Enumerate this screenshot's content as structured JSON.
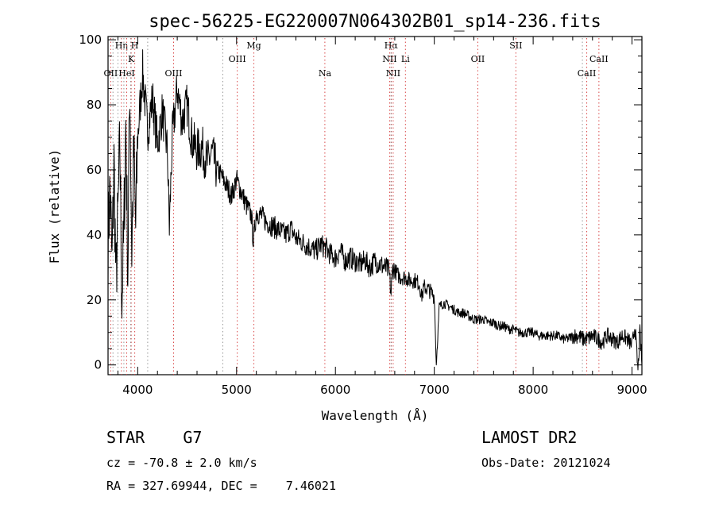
{
  "chart_data": {
    "type": "line",
    "title": "spec-56225-EG220007N064302B01_sp14-236.fits",
    "xlabel": "Wavelength (Å)",
    "ylabel": "Flux (relative)",
    "xlim": [
      3700,
      9100
    ],
    "ylim": [
      -3,
      101
    ],
    "xticks": [
      4000,
      5000,
      6000,
      7000,
      8000,
      9000
    ],
    "yticks": [
      0,
      20,
      40,
      60,
      80,
      100
    ],
    "grid": false,
    "line_color": "#000000",
    "marker_color": "#d94a4a",
    "series": [
      {
        "x": [
          3700,
          3720,
          3740,
          3760,
          3780,
          3800,
          3820,
          3840,
          3860,
          3880,
          3900,
          3920,
          3940,
          3960,
          3980,
          4000,
          4050,
          4100,
          4150,
          4200,
          4250,
          4300,
          4320,
          4350,
          4400,
          4450,
          4500,
          4550,
          4600,
          4650,
          4700,
          4750,
          4800,
          4850,
          4900,
          4950,
          5000,
          5050,
          5100,
          5150,
          5170,
          5200,
          5250,
          5300,
          5350,
          5400,
          5450,
          5500,
          5550,
          5600,
          5650,
          5700,
          5750,
          5800,
          5850,
          5900,
          5950,
          6000,
          6050,
          6100,
          6150,
          6200,
          6250,
          6300,
          6350,
          6400,
          6450,
          6500,
          6540,
          6563,
          6580,
          6600,
          6650,
          6700,
          6750,
          6800,
          6850,
          6870,
          6900,
          6950,
          7000,
          7020,
          7050,
          7100,
          7150,
          7200,
          7250,
          7300,
          7350,
          7400,
          7450,
          7500,
          7550,
          7600,
          7650,
          7700,
          7750,
          7800,
          7850,
          7900,
          7950,
          8000,
          8050,
          8100,
          8150,
          8200,
          8250,
          8300,
          8350,
          8400,
          8450,
          8500,
          8550,
          8600,
          8650,
          8700,
          8750,
          8800,
          8850,
          8900,
          8950,
          9000,
          9030,
          9060,
          9080,
          9100
        ],
        "y": [
          38,
          55,
          30,
          62,
          25,
          45,
          68,
          20,
          40,
          75,
          28,
          88,
          35,
          65,
          42,
          70,
          90,
          72,
          82,
          68,
          78,
          66,
          42,
          70,
          85,
          75,
          80,
          69,
          66,
          67,
          62,
          65,
          60,
          58,
          55,
          52,
          57,
          53,
          49,
          46,
          38,
          47,
          46,
          44,
          43,
          42,
          41,
          40,
          42,
          39,
          38,
          37,
          36,
          35,
          37,
          36,
          34,
          33,
          35,
          32,
          33,
          32,
          31,
          32,
          30,
          32,
          31,
          30,
          29,
          22,
          30,
          29,
          27,
          27,
          26,
          26,
          25,
          21,
          24,
          23,
          21,
          0,
          18,
          19,
          18,
          17,
          16,
          16,
          15,
          14,
          14,
          14,
          13,
          13,
          12,
          12,
          11,
          11,
          10,
          10,
          10,
          10,
          9,
          9,
          9,
          9,
          9,
          8,
          8,
          9,
          9,
          8,
          8,
          9,
          8,
          7,
          9,
          8,
          7,
          9,
          8,
          6,
          12,
          -2,
          10,
          0
        ]
      }
    ],
    "lines_top": [
      {
        "label": "Hη",
        "x": 3835,
        "row": 0
      },
      {
        "label": "H",
        "x": 3970,
        "row": 0
      },
      {
        "label": "Mg",
        "x": 5175,
        "row": 0
      },
      {
        "label": "Hα",
        "x": 6563,
        "row": 0
      },
      {
        "label": "SII",
        "x": 7825,
        "row": 0
      },
      {
        "label": "K",
        "x": 3934,
        "row": 1
      },
      {
        "label": "OIII",
        "x": 5007,
        "row": 1
      },
      {
        "label": "NII",
        "x": 6548,
        "row": 1
      },
      {
        "label": "Li",
        "x": 6708,
        "row": 1
      },
      {
        "label": "OII",
        "x": 7440,
        "row": 1
      },
      {
        "label": "CaII",
        "x": 8665,
        "row": 1
      }
    ],
    "lines_bottom": [
      {
        "label": "OII",
        "x": 3727,
        "row": 2
      },
      {
        "label": "HeI",
        "x": 3889,
        "row": 2
      },
      {
        "label": "OIII",
        "x": 4363,
        "row": 2
      },
      {
        "label": "Na",
        "x": 5893,
        "row": 2
      },
      {
        "label": "NII",
        "x": 6584,
        "row": 2
      },
      {
        "label": "CaII",
        "x": 8542,
        "row": 2
      }
    ],
    "extra_dotted_x": [
      3750,
      3800,
      3860,
      3930,
      4101,
      4861,
      6563,
      8498
    ]
  },
  "info": {
    "class_label": "STAR    G7",
    "cz_text": "cz = -70.8 ± 2.0 km/s",
    "radec_text": "RA = 327.69944, DEC =    7.46021",
    "survey": "LAMOST DR2",
    "obs_date": "Obs-Date: 20121024"
  }
}
